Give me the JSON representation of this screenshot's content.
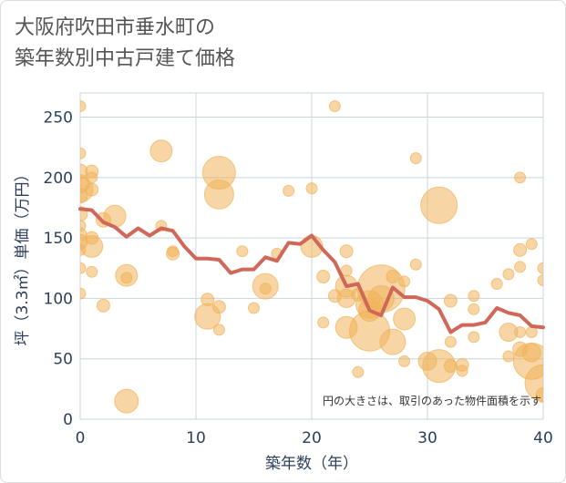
{
  "title_line1": "大阪府吹田市垂水町の",
  "title_line2": "築年数別中古戸建て価格",
  "colors": {
    "bubble_fill": "#f0b25a",
    "bubble_alpha": 0.55,
    "line": "#d0685a",
    "grid": "#c8d4e0",
    "axis_text": "#2b3f5c"
  },
  "chart_data": {
    "type": "scatter",
    "xlabel": "築年数（年）",
    "ylabel": "坪（3.3㎡）単価（万円）",
    "xlim": [
      0,
      40
    ],
    "ylim": [
      0,
      270
    ],
    "xticks": [
      "0",
      "10",
      "20",
      "30",
      "40"
    ],
    "yticks": [
      "0",
      "50",
      "100",
      "150",
      "200",
      "250"
    ],
    "note": "円の大きさは、取引のあった物件面積を示す",
    "grid": true,
    "line_series": {
      "x": [
        0,
        1,
        2,
        3,
        4,
        5,
        6,
        7,
        8,
        9,
        10,
        11,
        12,
        13,
        14,
        15,
        16,
        17,
        18,
        19,
        20,
        21,
        22,
        23,
        24,
        25,
        26,
        27,
        28,
        29,
        30,
        31,
        32,
        33,
        34,
        35,
        36,
        37,
        38,
        39,
        40
      ],
      "y": [
        174,
        173,
        163,
        159,
        151,
        158,
        152,
        158,
        156,
        143,
        133,
        133,
        132,
        121,
        124,
        124,
        134,
        131,
        146,
        145,
        152,
        140,
        130,
        110,
        112,
        90,
        86,
        109,
        101,
        101,
        98,
        91,
        72,
        78,
        78,
        80,
        92,
        88,
        86,
        77,
        76
      ]
    },
    "bubbles": [
      {
        "x": 0,
        "y": 259,
        "r": 6
      },
      {
        "x": 0,
        "y": 220,
        "r": 6
      },
      {
        "x": 0,
        "y": 205,
        "r": 8
      },
      {
        "x": 0,
        "y": 195,
        "r": 10
      },
      {
        "x": 0,
        "y": 190,
        "r": 14
      },
      {
        "x": 0,
        "y": 185,
        "r": 8
      },
      {
        "x": 0,
        "y": 170,
        "r": 8
      },
      {
        "x": 0,
        "y": 160,
        "r": 6
      },
      {
        "x": 0,
        "y": 153,
        "r": 7
      },
      {
        "x": 0,
        "y": 147,
        "r": 8
      },
      {
        "x": 0,
        "y": 140,
        "r": 6
      },
      {
        "x": 0,
        "y": 125,
        "r": 6
      },
      {
        "x": 0,
        "y": 104,
        "r": 6
      },
      {
        "x": 1,
        "y": 205,
        "r": 7
      },
      {
        "x": 1,
        "y": 200,
        "r": 6
      },
      {
        "x": 1,
        "y": 190,
        "r": 7
      },
      {
        "x": 1,
        "y": 143,
        "r": 12
      },
      {
        "x": 1,
        "y": 150,
        "r": 7
      },
      {
        "x": 1,
        "y": 122,
        "r": 6
      },
      {
        "x": 2,
        "y": 165,
        "r": 8
      },
      {
        "x": 2,
        "y": 94,
        "r": 7
      },
      {
        "x": 3,
        "y": 168,
        "r": 12
      },
      {
        "x": 4,
        "y": 119,
        "r": 12
      },
      {
        "x": 4,
        "y": 117,
        "r": 6
      },
      {
        "x": 4,
        "y": 15,
        "r": 13
      },
      {
        "x": 7,
        "y": 222,
        "r": 12
      },
      {
        "x": 7,
        "y": 160,
        "r": 6
      },
      {
        "x": 8,
        "y": 139,
        "r": 6
      },
      {
        "x": 8,
        "y": 137,
        "r": 7
      },
      {
        "x": 11,
        "y": 99,
        "r": 7
      },
      {
        "x": 11,
        "y": 85,
        "r": 14
      },
      {
        "x": 12,
        "y": 204,
        "r": 18
      },
      {
        "x": 12,
        "y": 186,
        "r": 16
      },
      {
        "x": 12,
        "y": 93,
        "r": 7
      },
      {
        "x": 12,
        "y": 74,
        "r": 6
      },
      {
        "x": 14,
        "y": 139,
        "r": 6
      },
      {
        "x": 15,
        "y": 92,
        "r": 6
      },
      {
        "x": 16,
        "y": 110,
        "r": 14
      },
      {
        "x": 16,
        "y": 108,
        "r": 6
      },
      {
        "x": 17,
        "y": 137,
        "r": 6
      },
      {
        "x": 18,
        "y": 189,
        "r": 6
      },
      {
        "x": 20,
        "y": 191,
        "r": 6
      },
      {
        "x": 20,
        "y": 143,
        "r": 12
      },
      {
        "x": 21,
        "y": 118,
        "r": 7
      },
      {
        "x": 21,
        "y": 80,
        "r": 6
      },
      {
        "x": 22,
        "y": 259,
        "r": 6
      },
      {
        "x": 22,
        "y": 102,
        "r": 7
      },
      {
        "x": 23,
        "y": 139,
        "r": 7
      },
      {
        "x": 23,
        "y": 123,
        "r": 6
      },
      {
        "x": 23,
        "y": 110,
        "r": 12
      },
      {
        "x": 23,
        "y": 100,
        "r": 10
      },
      {
        "x": 23,
        "y": 76,
        "r": 12
      },
      {
        "x": 24,
        "y": 39,
        "r": 6
      },
      {
        "x": 24,
        "y": 103,
        "r": 7
      },
      {
        "x": 25,
        "y": 95,
        "r": 15
      },
      {
        "x": 25,
        "y": 90,
        "r": 12
      },
      {
        "x": 25,
        "y": 73,
        "r": 22
      },
      {
        "x": 26,
        "y": 108,
        "r": 26
      },
      {
        "x": 26,
        "y": 100,
        "r": 14
      },
      {
        "x": 27,
        "y": 118,
        "r": 7
      },
      {
        "x": 27,
        "y": 64,
        "r": 14
      },
      {
        "x": 28,
        "y": 83,
        "r": 12
      },
      {
        "x": 28,
        "y": 114,
        "r": 6
      },
      {
        "x": 28,
        "y": 48,
        "r": 6
      },
      {
        "x": 29,
        "y": 216,
        "r": 6
      },
      {
        "x": 29,
        "y": 128,
        "r": 6
      },
      {
        "x": 30,
        "y": 48,
        "r": 10
      },
      {
        "x": 31,
        "y": 177,
        "r": 20
      },
      {
        "x": 31,
        "y": 44,
        "r": 18
      },
      {
        "x": 32,
        "y": 64,
        "r": 6
      },
      {
        "x": 32,
        "y": 98,
        "r": 7
      },
      {
        "x": 32,
        "y": 44,
        "r": 7
      },
      {
        "x": 33,
        "y": 40,
        "r": 6
      },
      {
        "x": 33,
        "y": 45,
        "r": 7
      },
      {
        "x": 34,
        "y": 102,
        "r": 6
      },
      {
        "x": 34,
        "y": 91,
        "r": 6
      },
      {
        "x": 34,
        "y": 68,
        "r": 6
      },
      {
        "x": 36,
        "y": 112,
        "r": 6
      },
      {
        "x": 37,
        "y": 120,
        "r": 6
      },
      {
        "x": 37,
        "y": 72,
        "r": 10
      },
      {
        "x": 37,
        "y": 52,
        "r": 6
      },
      {
        "x": 38,
        "y": 200,
        "r": 6
      },
      {
        "x": 38,
        "y": 140,
        "r": 7
      },
      {
        "x": 38,
        "y": 126,
        "r": 6
      },
      {
        "x": 38,
        "y": 72,
        "r": 6
      },
      {
        "x": 38,
        "y": 58,
        "r": 8
      },
      {
        "x": 39,
        "y": 145,
        "r": 6
      },
      {
        "x": 39,
        "y": 72,
        "r": 6
      },
      {
        "x": 39,
        "y": 55,
        "r": 10
      },
      {
        "x": 39,
        "y": 48,
        "r": 20
      },
      {
        "x": 40,
        "y": 125,
        "r": 6
      },
      {
        "x": 40,
        "y": 115,
        "r": 6
      },
      {
        "x": 40,
        "y": 30,
        "r": 20
      },
      {
        "x": 40,
        "y": 20,
        "r": 8
      }
    ]
  }
}
